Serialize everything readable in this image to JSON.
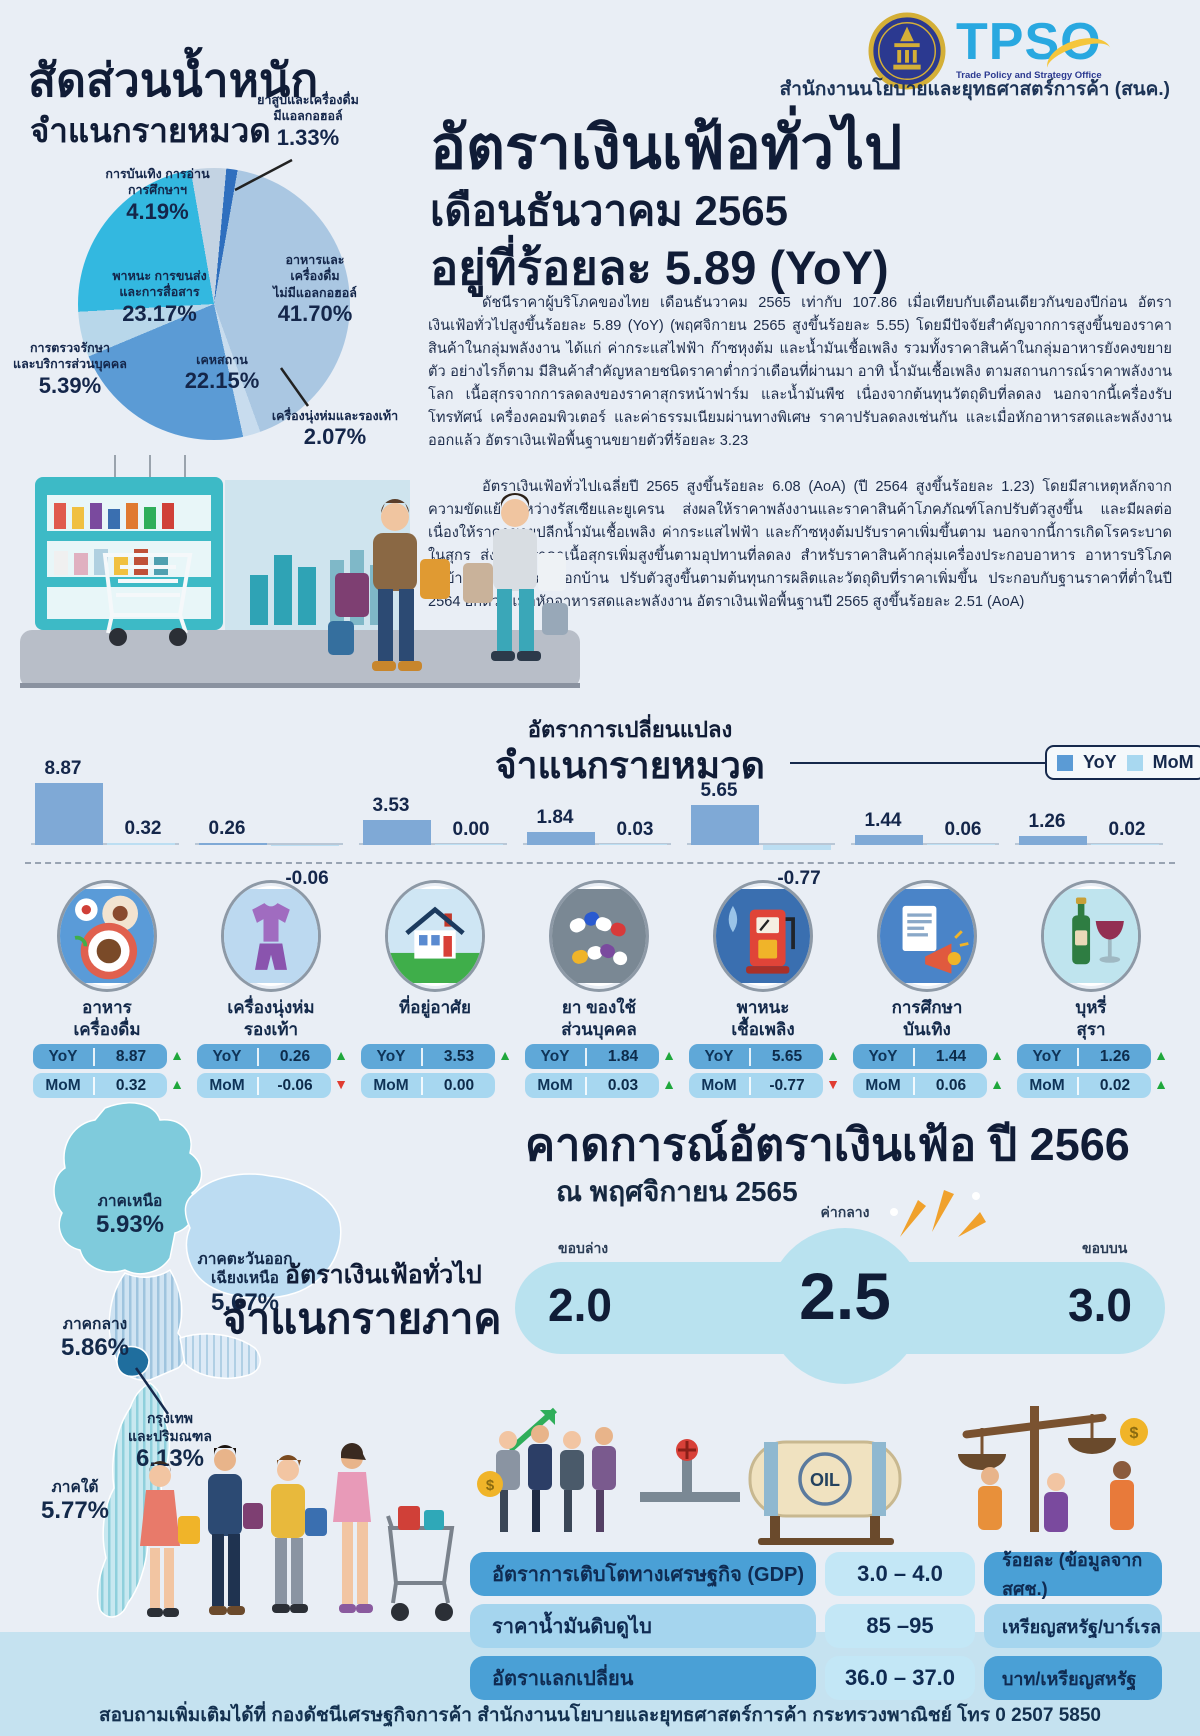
{
  "header": {
    "org_name": "สำนักงานนโยบายและยุทธศาสตร์การค้า (สนค.)",
    "logo_acronym": "TPSO",
    "logo_tagline": "Trade Policy and Strategy Office"
  },
  "hero": {
    "title": "อัตราเงินเฟ้อทั่วไป",
    "subtitle": "เดือนธันวาคม 2565",
    "rate_line": "อยู่ที่ร้อยละ 5.89 (YoY)",
    "paragraph1": "ดัชนีราคาผู้บริโภคของไทย เดือนธันวาคม 2565 เท่ากับ 107.86 เมื่อเทียบกับเดือนเดียวกันของปีก่อน อัตราเงินเฟ้อทั่วไปสูงขึ้นร้อยละ 5.89 (YoY) (พฤศจิกายน 2565 สูงขึ้นร้อยละ 5.55) โดยมีปัจจัยสำคัญจากการสูงขึ้นของราคาสินค้าในกลุ่มพลังงาน ได้แก่ ค่ากระแสไฟฟ้า ก๊าซหุงต้ม และน้ำมันเชื้อเพลิง รวมทั้งราคาสินค้าในกลุ่มอาหารยังคงขยายตัว อย่างไรก็ตาม มีสินค้าสำคัญหลายชนิดราคาต่ำกว่าเดือนที่ผ่านมา อาทิ น้ำมันเชื้อเพลิง ตามสถานการณ์ราคาพลังงานโลก เนื้อสุกรจากการลดลงของราคาสุกรหน้าฟาร์ม และน้ำมันพืช เนื่องจากต้นทุนวัตถุดิบที่ลดลง นอกจากนี้เครื่องรับโทรทัศน์ เครื่องคอมพิวเตอร์ และค่าธรรมเนียมผ่านทางพิเศษ ราคาปรับลดลงเช่นกัน และเมื่อหักอาหารสดและพลังงานออกแล้ว อัตราเงินเฟ้อพื้นฐานขยายตัวที่ร้อยละ 3.23",
    "paragraph2": "อัตราเงินเฟ้อทั่วไปเฉลี่ยปี 2565 สูงขึ้นร้อยละ 6.08 (AoA) (ปี 2564 สูงขึ้นร้อยละ 1.23) โดยมีสาเหตุหลักจากความขัดแย้งระหว่างรัสเซียและยูเครน ส่งผลให้ราคาพลังงานและราคาสินค้าโภคภัณฑ์โลกปรับตัวสูงขึ้น และมีผลต่อเนื่องให้ราคาขายปลีกน้ำมันเชื้อเพลิง ค่ากระแสไฟฟ้า และก๊าซหุงต้มปรับราคาเพิ่มขึ้นตาม นอกจากนี้การเกิดโรคระบาดในสุกร ส่งผลให้ราคาเนื้อสุกรเพิ่มสูงขึ้นตามอุปทานที่ลดลง สำหรับราคาสินค้ากลุ่มเครื่องประกอบอาหาร อาหารบริโภคในบ้าน และบริโภคนอกบ้าน ปรับตัวสูงขึ้นตามต้นทุนการผลิตและวัตถุดิบที่ราคาเพิ่มขึ้น ประกอบกับฐานราคาที่ต่ำในปี 2564 อีกด้วย เมื่อหักอาหารสดและพลังงาน อัตราเงินเฟ้อพื้นฐานปี 2565 สูงขึ้นร้อยละ 2.51 (AoA)"
  },
  "pie_section": {
    "title1": "สัดส่วนน้ำหนัก",
    "title2": "จำแนกรายหมวด"
  },
  "pie_labels": {
    "tobacco": {
      "l1": "ยาสูบและเครื่องดื่ม",
      "l2": "มีแอลกอฮอล์",
      "pct": "1.33%"
    },
    "leisure": {
      "l1": "การบันเทิง การอ่าน",
      "l2": "การศึกษาฯ",
      "pct": "4.19%"
    },
    "food": {
      "l1": "อาหารและ",
      "l2": "เครื่องดื่ม",
      "l3": "ไม่มีแอลกอฮอล์",
      "pct": "41.70%"
    },
    "vehicle": {
      "l1": "พาหนะ การขนส่ง",
      "l2": "และการสื่อสาร",
      "pct": "23.17%"
    },
    "housing": {
      "l1": "เคหสถาน",
      "pct": "22.15%"
    },
    "medical": {
      "l1": "การตรวจรักษา",
      "l2": "และบริการส่วนบุคคล",
      "pct": "5.39%"
    },
    "clothing": {
      "l1": "เครื่องนุ่งห่มและรองเท้า",
      "pct": "2.07%"
    }
  },
  "bar_section": {
    "title1": "อัตราการเปลี่ยนแปลง",
    "title2": "จำแนกรายหมวด",
    "legend_yoy": "YoY",
    "legend_mom": "MoM"
  },
  "labels": {
    "yoy": "YoY",
    "mom": "MoM"
  },
  "categories": [
    {
      "name1": "อาหาร",
      "name2": "เครื่องดื่ม",
      "icon": "food-beverage-icon",
      "yoy": "8.87",
      "mom": "0.32",
      "yoy_dir": "up",
      "mom_dir": "up"
    },
    {
      "name1": "เครื่องนุ่งห่ม",
      "name2": "รองเท้า",
      "icon": "clothing-footwear-icon",
      "yoy": "0.26",
      "mom": "-0.06",
      "yoy_dir": "up",
      "mom_dir": "down"
    },
    {
      "name1": "ที่อยู่อาศัย",
      "name2": "",
      "icon": "housing-icon",
      "yoy": "3.53",
      "mom": "0.00",
      "yoy_dir": "up",
      "mom_dir": "none"
    },
    {
      "name1": "ยา ของใช้",
      "name2": "ส่วนบุคคล",
      "icon": "medicine-personal-icon",
      "yoy": "1.84",
      "mom": "0.03",
      "yoy_dir": "up",
      "mom_dir": "up"
    },
    {
      "name1": "พาหนะ",
      "name2": "เชื้อเพลิง",
      "icon": "vehicle-fuel-icon",
      "yoy": "5.65",
      "mom": "-0.77",
      "yoy_dir": "up",
      "mom_dir": "down"
    },
    {
      "name1": "การศึกษา",
      "name2": "บันเทิง",
      "icon": "education-entertainment-icon",
      "yoy": "1.44",
      "mom": "0.06",
      "yoy_dir": "up",
      "mom_dir": "up"
    },
    {
      "name1": "บุหรี่",
      "name2": "สุรา",
      "icon": "tobacco-alcohol-icon",
      "yoy": "1.26",
      "mom": "0.02",
      "yoy_dir": "up",
      "mom_dir": "up"
    }
  ],
  "chart_data": [
    {
      "type": "pie",
      "title": "สัดส่วนน้ำหนัก จำแนกรายหมวด",
      "unit": "%",
      "slices": [
        {
          "label": "อาหารและเครื่องดื่มไม่มีแอลกอฮอล์",
          "value": 41.7,
          "color": "#aac7e2"
        },
        {
          "label": "เครื่องนุ่งห่มและรองเท้า",
          "value": 2.07,
          "color": "#c8dcee"
        },
        {
          "label": "เคหสถาน",
          "value": 22.15,
          "color": "#5b9bd5"
        },
        {
          "label": "การตรวจรักษาและบริการส่วนบุคคล",
          "value": 5.39,
          "color": "#b8d7ea"
        },
        {
          "label": "พาหนะ การขนส่ง และการสื่อสาร",
          "value": 23.17,
          "color": "#33b8e0"
        },
        {
          "label": "การบันเทิง การอ่าน การศึกษาฯ",
          "value": 4.19,
          "color": "#c3d3e3"
        },
        {
          "label": "ยาสูบและเครื่องดื่มมีแอลกอฮอล์",
          "value": 1.33,
          "color": "#2f6fbe"
        }
      ]
    },
    {
      "type": "bar",
      "title": "อัตราการเปลี่ยนแปลง จำแนกรายหมวด",
      "categories": [
        "อาหาร เครื่องดื่ม",
        "เครื่องนุ่งห่ม รองเท้า",
        "ที่อยู่อาศัย",
        "ยา ของใช้ส่วนบุคคล",
        "พาหนะ เชื้อเพลิง",
        "การศึกษา บันเทิง",
        "บุหรี่ สุรา"
      ],
      "series": [
        {
          "name": "YoY",
          "values": [
            8.87,
            0.26,
            3.53,
            1.84,
            5.65,
            1.44,
            1.26
          ]
        },
        {
          "name": "MoM",
          "values": [
            0.32,
            -0.06,
            0.0,
            0.03,
            -0.77,
            0.06,
            0.02
          ]
        }
      ],
      "ylim": [
        -1,
        9.5
      ],
      "grid": false,
      "legend_position": "top-right"
    }
  ],
  "map_section": {
    "title1": "อัตราเงินเฟ้อทั่วไป",
    "title2": "จำแนกรายภาค",
    "north": {
      "l1": "ภาคเหนือ",
      "pct": "5.93%"
    },
    "northeast": {
      "l1": "ภาคตะวันออก",
      "l2": "เฉียงเหนือ",
      "pct": "5.67%"
    },
    "central": {
      "l1": "ภาคกลาง",
      "pct": "5.86%"
    },
    "bangkok": {
      "l1": "กรุงเทพ",
      "l2": "และปริมณฑล",
      "pct": "6.13%"
    },
    "south": {
      "l1": "ภาคใต้",
      "pct": "5.77%"
    }
  },
  "forecast": {
    "title": "คาดการณ์อัตราเงินเฟ้อ ปี 2566",
    "as_of": "ณ พฤศจิกายน 2565",
    "lower_label": "ขอบล่าง",
    "lower": "2.0",
    "mid_label": "ค่ากลาง",
    "mid": "2.5",
    "upper_label": "ขอบบน",
    "upper": "3.0"
  },
  "assumptions": [
    {
      "label": "อัตราการเติบโตทางเศรษฐกิจ (GDP)",
      "value": "3.0 – 4.0",
      "unit": "ร้อยละ (ข้อมูลจากสศช.)"
    },
    {
      "label": "ราคาน้ำมันดิบดูไบ",
      "value": "85 –95",
      "unit": "เหรียญสหรัฐ/บาร์เรล"
    },
    {
      "label": "อัตราแลกเปลี่ยน",
      "value": "36.0 – 37.0",
      "unit": "บาท/เหรียญสหรัฐ"
    }
  ],
  "illustration": {
    "oil_label": "OIL",
    "coin_symbol": "$"
  },
  "footer": {
    "text": "สอบถามเพิ่มเติมได้ที่ กองดัชนีเศรษฐกิจการค้า สำนักงานนโยบายและยุทธศาสตร์การค้า กระทรวงพาณิชย์ โทร 0 2507 5850"
  },
  "colors": {
    "up_arrow": "#1fa73c",
    "down_arrow": "#e03c31",
    "yoy_bar": "#7fa9d6",
    "mom_bar": "#bcdef2",
    "accent_cyan": "#b9e2ef",
    "footer_band": "#c5e2f0"
  }
}
